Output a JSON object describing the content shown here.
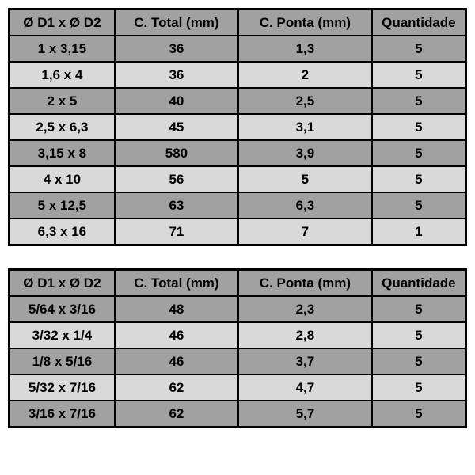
{
  "table1": {
    "columns": [
      "Ø D1 x Ø D2",
      "C. Total (mm)",
      "C. Ponta (mm)",
      "Quantidade"
    ],
    "rows": [
      [
        "1 x 3,15",
        "36",
        "1,3",
        "5"
      ],
      [
        "1,6 x 4",
        "36",
        "2",
        "5"
      ],
      [
        "2 x 5",
        "40",
        "2,5",
        "5"
      ],
      [
        "2,5 x 6,3",
        "45",
        "3,1",
        "5"
      ],
      [
        "3,15 x 8",
        "580",
        "3,9",
        "5"
      ],
      [
        "4 x 10",
        "56",
        "5",
        "5"
      ],
      [
        "5 x 12,5",
        "63",
        "6,3",
        "5"
      ],
      [
        "6,3 x 16",
        "71",
        "7",
        "1"
      ]
    ],
    "header_bg": "#a1a1a1",
    "row_odd_bg": "#a1a1a1",
    "row_even_bg": "#d9d9d9",
    "border_color": "#000000",
    "font_size": 17
  },
  "table2": {
    "columns": [
      "Ø D1 x Ø D2",
      "C. Total (mm)",
      "C. Ponta (mm)",
      "Quantidade"
    ],
    "rows": [
      [
        "5/64 x 3/16",
        "48",
        "2,3",
        "5"
      ],
      [
        "3/32 x 1/4",
        "46",
        "2,8",
        "5"
      ],
      [
        "1/8 x 5/16",
        "46",
        "3,7",
        "5"
      ],
      [
        "5/32 x 7/16",
        "62",
        "4,7",
        "5"
      ],
      [
        "3/16 x 7/16",
        "62",
        "5,7",
        "5"
      ]
    ],
    "header_bg": "#a1a1a1",
    "row_odd_bg": "#a1a1a1",
    "row_even_bg": "#d9d9d9",
    "border_color": "#000000",
    "font_size": 17
  }
}
